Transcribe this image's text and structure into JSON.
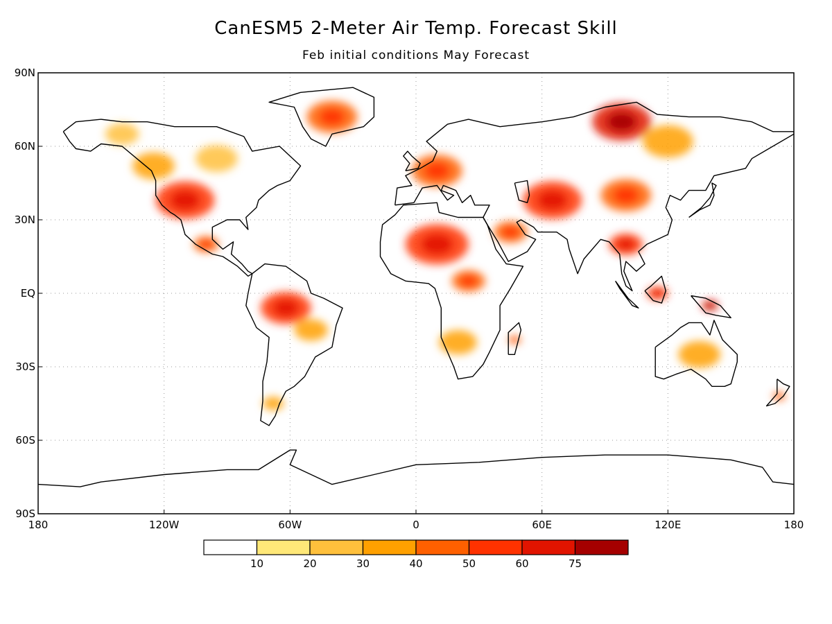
{
  "title": "CanESM5 2-Meter Air Temp. Forecast Skill",
  "subtitle": "Feb initial conditions  May Forecast",
  "axes": {
    "lat_ticks": [
      {
        "lat": 90,
        "label": "90N"
      },
      {
        "lat": 60,
        "label": "60N"
      },
      {
        "lat": 30,
        "label": "30N"
      },
      {
        "lat": 0,
        "label": "EQ"
      },
      {
        "lat": -30,
        "label": "30S"
      },
      {
        "lat": -60,
        "label": "60S"
      },
      {
        "lat": -90,
        "label": "90S"
      }
    ],
    "lon_ticks": [
      {
        "lon": -180,
        "label": "180"
      },
      {
        "lon": -120,
        "label": "120W"
      },
      {
        "lon": -60,
        "label": "60W"
      },
      {
        "lon": 0,
        "label": "0"
      },
      {
        "lon": 60,
        "label": "60E"
      },
      {
        "lon": 120,
        "label": "120E"
      },
      {
        "lon": 180,
        "label": "180"
      }
    ],
    "grid": true
  },
  "colorbar": {
    "colors": [
      "#ffffff",
      "#ffe878",
      "#ffc03c",
      "#ffa000",
      "#ff6000",
      "#ff3200",
      "#e11400",
      "#a50000"
    ],
    "labels": [
      "10",
      "20",
      "30",
      "40",
      "50",
      "60",
      "75"
    ]
  },
  "skill_regions": [
    {
      "lon": -110,
      "lat": 38,
      "r": 14,
      "level": 5
    },
    {
      "lon": -125,
      "lat": 52,
      "r": 10,
      "level": 3
    },
    {
      "lon": -95,
      "lat": 55,
      "r": 10,
      "level": 2
    },
    {
      "lon": -100,
      "lat": 20,
      "r": 6,
      "level": 4
    },
    {
      "lon": -40,
      "lat": 72,
      "r": 12,
      "level": 4
    },
    {
      "lon": -140,
      "lat": 65,
      "r": 8,
      "level": 2
    },
    {
      "lon": -62,
      "lat": -6,
      "r": 12,
      "level": 5
    },
    {
      "lon": -50,
      "lat": -15,
      "r": 8,
      "level": 3
    },
    {
      "lon": -68,
      "lat": -45,
      "r": 5,
      "level": 3
    },
    {
      "lon": 10,
      "lat": 20,
      "r": 15,
      "level": 5
    },
    {
      "lon": 25,
      "lat": 5,
      "r": 8,
      "level": 4
    },
    {
      "lon": 20,
      "lat": -20,
      "r": 9,
      "level": 3
    },
    {
      "lon": 47,
      "lat": -19,
      "r": 3,
      "level": 4
    },
    {
      "lon": 10,
      "lat": 50,
      "r": 12,
      "level": 4
    },
    {
      "lon": 65,
      "lat": 38,
      "r": 14,
      "level": 5
    },
    {
      "lon": 45,
      "lat": 25,
      "r": 8,
      "level": 4
    },
    {
      "lon": 98,
      "lat": 70,
      "r": 14,
      "level": 6
    },
    {
      "lon": 120,
      "lat": 62,
      "r": 12,
      "level": 3
    },
    {
      "lon": 100,
      "lat": 40,
      "r": 12,
      "level": 4
    },
    {
      "lon": 100,
      "lat": 20,
      "r": 8,
      "level": 5
    },
    {
      "lon": 115,
      "lat": 0,
      "r": 5,
      "level": 5
    },
    {
      "lon": 140,
      "lat": -5,
      "r": 4,
      "level": 6
    },
    {
      "lon": 135,
      "lat": -25,
      "r": 10,
      "level": 3
    },
    {
      "lon": 173,
      "lat": -42,
      "r": 3,
      "level": 4
    }
  ]
}
